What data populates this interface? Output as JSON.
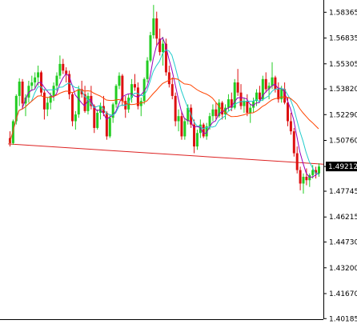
{
  "chart_data": {
    "type": "candlestick",
    "title": "",
    "xlabel": "",
    "ylabel": "",
    "ylim": [
      1.4015,
      1.5895
    ],
    "grid": false,
    "legend": "none",
    "yticks": [
      {
        "value": 1.58365,
        "label": "1.58365"
      },
      {
        "value": 1.56835,
        "label": "1.56835"
      },
      {
        "value": 1.55305,
        "label": "1.55305"
      },
      {
        "value": 1.5382,
        "label": "1.53820"
      },
      {
        "value": 1.5229,
        "label": "1.52290"
      },
      {
        "value": 1.5076,
        "label": "1.50760"
      },
      {
        "value": 1.47745,
        "label": "1.47745"
      },
      {
        "value": 1.46215,
        "label": "1.46215"
      },
      {
        "value": 1.4473,
        "label": "1.44730"
      },
      {
        "value": 1.432,
        "label": "1.43200"
      },
      {
        "value": 1.4167,
        "label": "1.41670"
      },
      {
        "value": 1.40185,
        "label": "1.40185"
      }
    ],
    "current_price": {
      "value": 1.49212,
      "label": "1.49212"
    },
    "colors": {
      "up": "#22cc22",
      "down": "#dd1111",
      "ma_fast": "#9900bb",
      "ma_medium": "#22cccc",
      "ma_slow": "#ff4400",
      "trendline": "#dd2222",
      "price_tag_bg": "#000000",
      "axis": "#000000",
      "background": "#ffffff"
    },
    "trendline": {
      "start": 1.5055,
      "end": 1.4935
    },
    "candles": [
      [
        1.509,
        1.513,
        1.504,
        1.506
      ],
      [
        1.506,
        1.52,
        1.505,
        1.519
      ],
      [
        1.519,
        1.535,
        1.517,
        1.534
      ],
      [
        1.534,
        1.5445,
        1.528,
        1.5425
      ],
      [
        1.5425,
        1.544,
        1.526,
        1.5295
      ],
      [
        1.5295,
        1.535,
        1.522,
        1.533
      ],
      [
        1.533,
        1.543,
        1.53,
        1.54
      ],
      [
        1.54,
        1.546,
        1.537,
        1.542
      ],
      [
        1.542,
        1.548,
        1.538,
        1.545
      ],
      [
        1.545,
        1.552,
        1.54,
        1.548
      ],
      [
        1.548,
        1.549,
        1.534,
        1.536
      ],
      [
        1.536,
        1.538,
        1.52,
        1.526
      ],
      [
        1.526,
        1.533,
        1.522,
        1.53
      ],
      [
        1.53,
        1.536,
        1.526,
        1.534
      ],
      [
        1.534,
        1.542,
        1.531,
        1.54
      ],
      [
        1.54,
        1.548,
        1.537,
        1.546
      ],
      [
        1.546,
        1.558,
        1.544,
        1.553
      ],
      [
        1.553,
        1.556,
        1.547,
        1.549
      ],
      [
        1.549,
        1.551,
        1.542,
        1.547
      ],
      [
        1.547,
        1.549,
        1.532,
        1.535
      ],
      [
        1.535,
        1.536,
        1.516,
        1.519
      ],
      [
        1.519,
        1.525,
        1.514,
        1.523
      ],
      [
        1.523,
        1.54,
        1.521,
        1.538
      ],
      [
        1.538,
        1.543,
        1.533,
        1.535
      ],
      [
        1.535,
        1.54,
        1.524,
        1.525
      ],
      [
        1.525,
        1.536,
        1.523,
        1.534
      ],
      [
        1.534,
        1.54,
        1.526,
        1.528
      ],
      [
        1.528,
        1.529,
        1.512,
        1.515
      ],
      [
        1.515,
        1.526,
        1.514,
        1.524
      ],
      [
        1.524,
        1.53,
        1.52,
        1.528
      ],
      [
        1.528,
        1.534,
        1.522,
        1.524
      ],
      [
        1.524,
        1.525,
        1.508,
        1.51
      ],
      [
        1.51,
        1.523,
        1.509,
        1.521
      ],
      [
        1.521,
        1.53,
        1.518,
        1.529
      ],
      [
        1.529,
        1.541,
        1.527,
        1.54
      ],
      [
        1.54,
        1.548,
        1.538,
        1.546
      ],
      [
        1.546,
        1.547,
        1.528,
        1.531
      ],
      [
        1.531,
        1.534,
        1.521,
        1.526
      ],
      [
        1.526,
        1.535,
        1.524,
        1.533
      ],
      [
        1.533,
        1.544,
        1.53,
        1.541
      ],
      [
        1.541,
        1.547,
        1.537,
        1.539
      ],
      [
        1.539,
        1.542,
        1.526,
        1.528
      ],
      [
        1.528,
        1.533,
        1.522,
        1.531
      ],
      [
        1.531,
        1.545,
        1.529,
        1.544
      ],
      [
        1.544,
        1.557,
        1.542,
        1.555
      ],
      [
        1.555,
        1.572,
        1.554,
        1.57
      ],
      [
        1.57,
        1.588,
        1.568,
        1.58
      ],
      [
        1.58,
        1.584,
        1.564,
        1.568
      ],
      [
        1.568,
        1.574,
        1.558,
        1.56
      ],
      [
        1.56,
        1.569,
        1.552,
        1.565
      ],
      [
        1.565,
        1.568,
        1.546,
        1.548
      ],
      [
        1.548,
        1.552,
        1.539,
        1.541
      ],
      [
        1.541,
        1.545,
        1.532,
        1.534
      ],
      [
        1.534,
        1.536,
        1.516,
        1.519
      ],
      [
        1.519,
        1.526,
        1.513,
        1.522
      ],
      [
        1.522,
        1.525,
        1.508,
        1.51
      ],
      [
        1.51,
        1.521,
        1.508,
        1.519
      ],
      [
        1.519,
        1.529,
        1.517,
        1.527
      ],
      [
        1.527,
        1.529,
        1.515,
        1.517
      ],
      [
        1.517,
        1.52,
        1.5,
        1.504
      ],
      [
        1.504,
        1.514,
        1.502,
        1.512
      ],
      [
        1.512,
        1.52,
        1.509,
        1.517
      ],
      [
        1.517,
        1.518,
        1.509,
        1.51
      ],
      [
        1.51,
        1.518,
        1.508,
        1.516
      ],
      [
        1.516,
        1.524,
        1.514,
        1.522
      ],
      [
        1.522,
        1.529,
        1.519,
        1.526
      ],
      [
        1.526,
        1.53,
        1.52,
        1.522
      ],
      [
        1.522,
        1.532,
        1.521,
        1.53
      ],
      [
        1.53,
        1.531,
        1.52,
        1.523
      ],
      [
        1.523,
        1.529,
        1.52,
        1.527
      ],
      [
        1.527,
        1.535,
        1.525,
        1.532
      ],
      [
        1.532,
        1.536,
        1.525,
        1.527
      ],
      [
        1.527,
        1.544,
        1.526,
        1.542
      ],
      [
        1.542,
        1.55,
        1.534,
        1.536
      ],
      [
        1.536,
        1.541,
        1.526,
        1.528
      ],
      [
        1.528,
        1.533,
        1.524,
        1.531
      ],
      [
        1.531,
        1.535,
        1.522,
        1.524
      ],
      [
        1.524,
        1.529,
        1.518,
        1.527
      ],
      [
        1.527,
        1.533,
        1.524,
        1.531
      ],
      [
        1.531,
        1.538,
        1.528,
        1.536
      ],
      [
        1.536,
        1.54,
        1.53,
        1.532
      ],
      [
        1.532,
        1.546,
        1.531,
        1.544
      ],
      [
        1.544,
        1.548,
        1.536,
        1.538
      ],
      [
        1.538,
        1.542,
        1.532,
        1.54
      ],
      [
        1.54,
        1.554,
        1.538,
        1.545
      ],
      [
        1.545,
        1.546,
        1.536,
        1.538
      ],
      [
        1.538,
        1.542,
        1.53,
        1.532
      ],
      [
        1.532,
        1.54,
        1.53,
        1.538
      ],
      [
        1.538,
        1.542,
        1.529,
        1.53
      ],
      [
        1.53,
        1.533,
        1.516,
        1.519
      ],
      [
        1.519,
        1.524,
        1.511,
        1.513
      ],
      [
        1.513,
        1.515,
        1.498,
        1.5
      ],
      [
        1.5,
        1.504,
        1.488,
        1.49
      ],
      [
        1.49,
        1.492,
        1.478,
        1.482
      ],
      [
        1.482,
        1.488,
        1.476,
        1.486
      ],
      [
        1.486,
        1.491,
        1.481,
        1.484
      ],
      [
        1.484,
        1.488,
        1.48,
        1.487
      ],
      [
        1.487,
        1.493,
        1.485,
        1.49
      ],
      [
        1.49,
        1.492,
        1.485,
        1.488
      ],
      [
        1.488,
        1.494,
        1.486,
        1.4921
      ]
    ]
  }
}
